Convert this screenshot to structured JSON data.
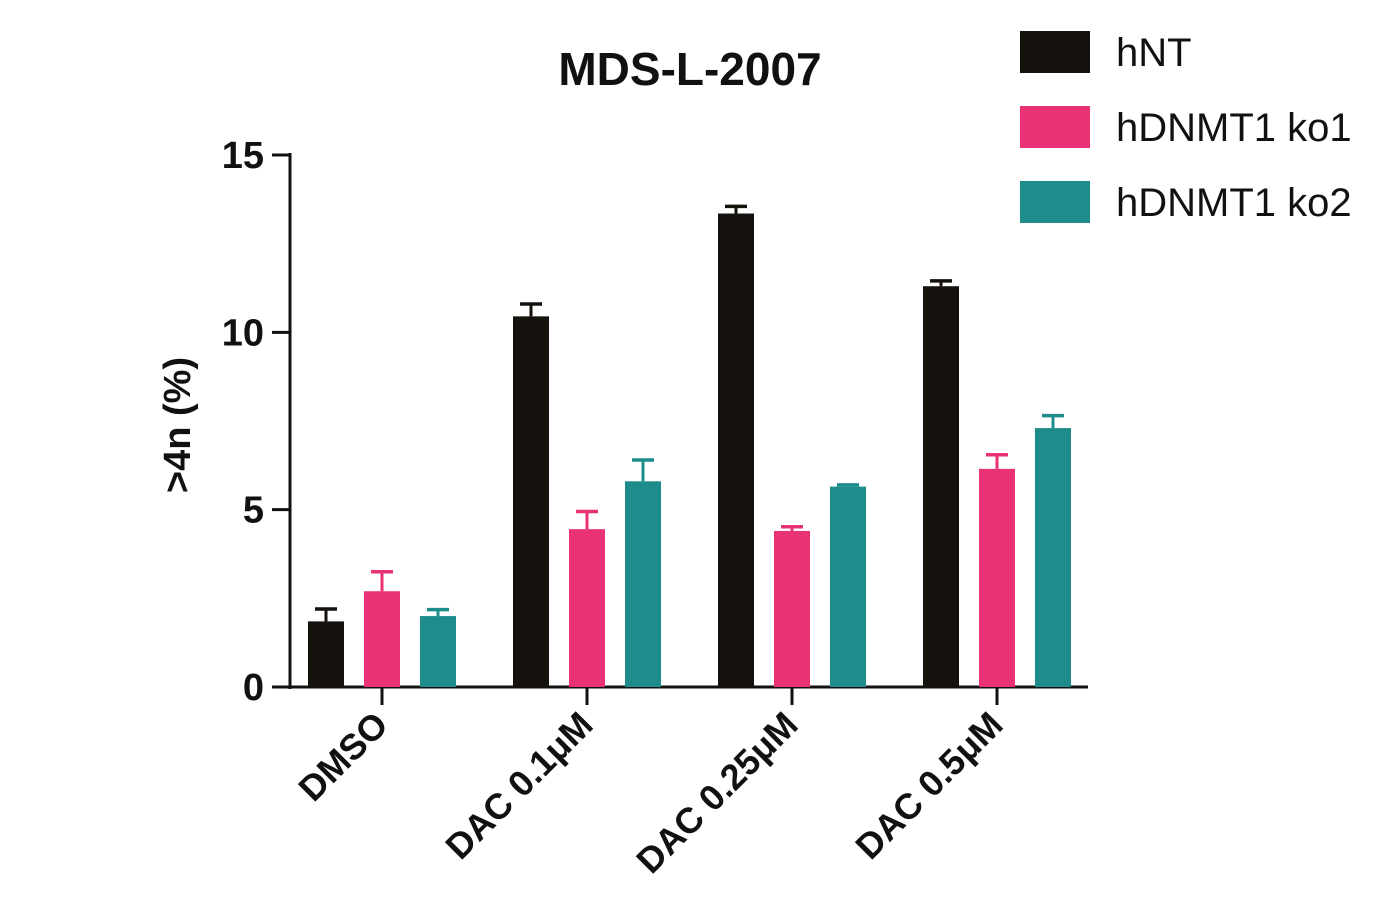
{
  "chart_data": {
    "type": "bar",
    "title": "MDS-L-2007",
    "xlabel": "",
    "ylabel": ">4n (%)",
    "ylim": [
      0,
      15
    ],
    "yticks": [
      "0",
      "5",
      "10",
      "15"
    ],
    "grid": false,
    "legend_position": "top-right",
    "categories": [
      "DMSO",
      "DAC 0.1μM",
      "DAC 0.25μM",
      "DAC 0.5μM"
    ],
    "series": [
      {
        "name": "hNT",
        "color": "#15110d",
        "values": [
          1.85,
          10.45,
          13.35,
          11.3
        ],
        "errors": [
          0.35,
          0.35,
          0.2,
          0.15
        ]
      },
      {
        "name": "hDNMT1 ko1",
        "color": "#e83275",
        "values": [
          2.7,
          4.45,
          4.4,
          6.15
        ],
        "errors": [
          0.55,
          0.5,
          0.12,
          0.4
        ]
      },
      {
        "name": "hDNMT1 ko2",
        "color": "#1f8c8c",
        "values": [
          2.0,
          5.8,
          5.65,
          7.3
        ],
        "errors": [
          0.18,
          0.6,
          0.05,
          0.35
        ]
      }
    ]
  }
}
